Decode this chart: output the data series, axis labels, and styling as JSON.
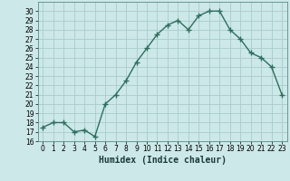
{
  "x": [
    0,
    1,
    2,
    3,
    4,
    5,
    6,
    7,
    8,
    9,
    10,
    11,
    12,
    13,
    14,
    15,
    16,
    17,
    18,
    19,
    20,
    21,
    22,
    23
  ],
  "y": [
    17.5,
    18,
    18,
    17,
    17.2,
    16.5,
    20,
    21,
    22.5,
    24.5,
    26,
    27.5,
    28.5,
    29,
    28,
    29.5,
    30,
    30,
    28,
    27,
    25.5,
    25,
    24,
    21
  ],
  "line_color": "#2e6e5e",
  "marker": "+",
  "marker_size": 4,
  "bg_color": "#cce8e8",
  "grid_color": "#aacccc",
  "xlabel": "Humidex (Indice chaleur)",
  "xlim": [
    -0.5,
    23.5
  ],
  "ylim": [
    16,
    31
  ],
  "yticks": [
    16,
    17,
    18,
    19,
    20,
    21,
    22,
    23,
    24,
    25,
    26,
    27,
    28,
    29,
    30
  ],
  "xticks": [
    0,
    1,
    2,
    3,
    4,
    5,
    6,
    7,
    8,
    9,
    10,
    11,
    12,
    13,
    14,
    15,
    16,
    17,
    18,
    19,
    20,
    21,
    22,
    23
  ],
  "tick_label_fontsize": 5.5,
  "xlabel_fontsize": 7,
  "linewidth": 1.0
}
